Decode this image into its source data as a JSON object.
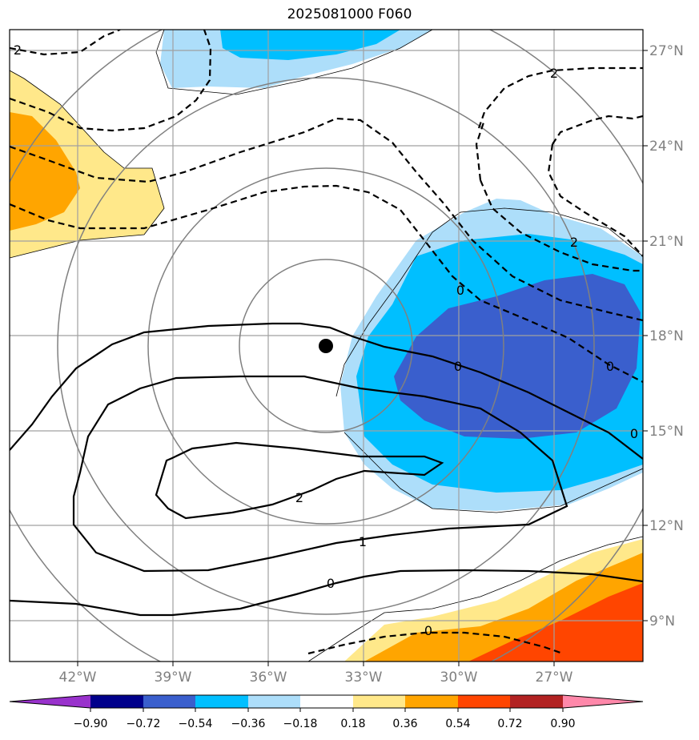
{
  "title": "2025081000 F060",
  "lon_labels": [
    "42°W",
    "39°W",
    "36°W",
    "33°W",
    "30°W",
    "27°W"
  ],
  "lat_labels": [
    "27°N",
    "24°N",
    "21°N",
    "18°N",
    "15°N",
    "12°N",
    "9°N"
  ],
  "colorbar": {
    "ticks": [
      "−0.90",
      "−0.72",
      "−0.54",
      "−0.36",
      "−0.18",
      "0.18",
      "0.36",
      "0.54",
      "0.72",
      "0.90"
    ],
    "colors": [
      "#9932CC",
      "#00008B",
      "#3A5FCD",
      "#00BFFF",
      "#ADDEFA",
      "#FFFFFF",
      "#FFE88A",
      "#FFA500",
      "#FF4500",
      "#B22222",
      "#FF88AA"
    ]
  },
  "contour_labels": {
    "solid_2": "2",
    "solid_1": "1",
    "solid_0_low": "0",
    "solid_0_east": "0",
    "dashed_0_se": "0",
    "dashed_0_ne": "0",
    "dashed_2_ne": "2",
    "dashed_2_top": "2",
    "dashed_2_left": "2",
    "dashed_0_edge": "0",
    "dashed_6_edge": "0"
  },
  "storm_center": {
    "lon": -34.2,
    "lat": 17.6
  }
}
